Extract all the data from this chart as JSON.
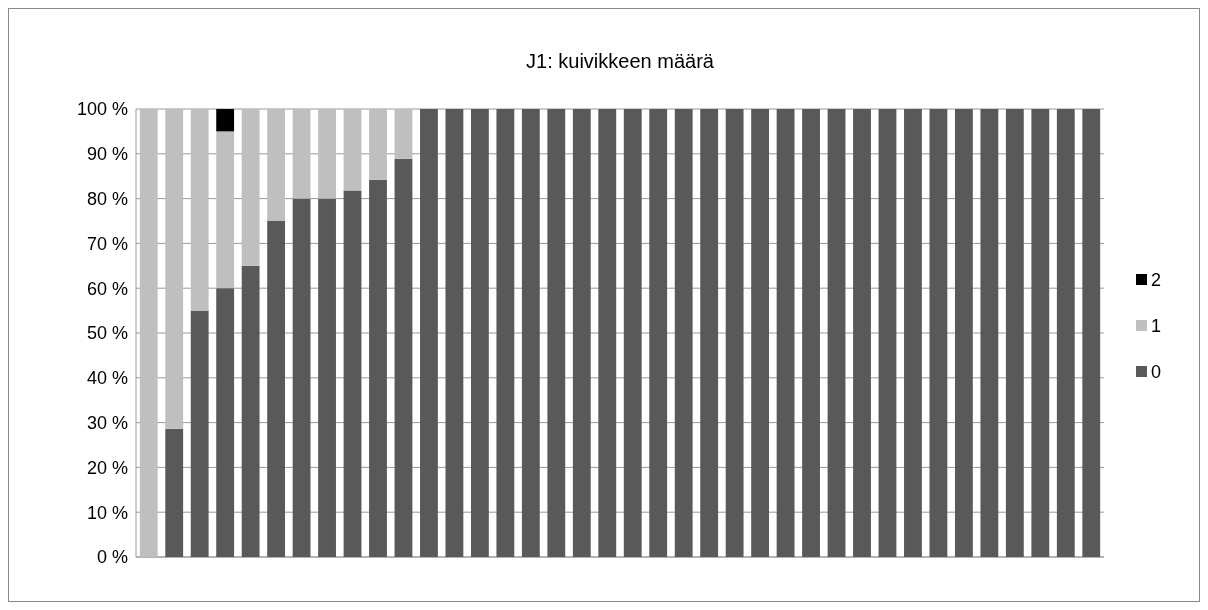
{
  "chart_data": {
    "type": "bar",
    "title": "J1: kuivikkeen määrä",
    "stacked": true,
    "categories": [
      null,
      null,
      null,
      null,
      null,
      null,
      null,
      null,
      null,
      null,
      null,
      null,
      null,
      null,
      null,
      null,
      null,
      null,
      null,
      null,
      null,
      null,
      null,
      null,
      null,
      null,
      null,
      null,
      null,
      null,
      null,
      null,
      null,
      null,
      null,
      null,
      null,
      null
    ],
    "series": [
      {
        "name": "0",
        "color": "#595959",
        "values": [
          0,
          28.6,
          55,
          60,
          65,
          75,
          80,
          80,
          81.8,
          84.2,
          88.9,
          100,
          100,
          100,
          100,
          100,
          100,
          100,
          100,
          100,
          100,
          100,
          100,
          100,
          100,
          100,
          100,
          100,
          100,
          100,
          100,
          100,
          100,
          100,
          100,
          100,
          100,
          100
        ]
      },
      {
        "name": "1",
        "color": "#bfbfbf",
        "values": [
          100,
          71.4,
          45,
          35,
          35,
          25,
          20,
          20,
          18.2,
          15.8,
          11.1,
          0,
          0,
          0,
          0,
          0,
          0,
          0,
          0,
          0,
          0,
          0,
          0,
          0,
          0,
          0,
          0,
          0,
          0,
          0,
          0,
          0,
          0,
          0,
          0,
          0,
          0,
          0
        ]
      },
      {
        "name": "2",
        "color": "#000000",
        "values": [
          0,
          0,
          0,
          5,
          0,
          0,
          0,
          0,
          0,
          0,
          0,
          0,
          0,
          0,
          0,
          0,
          0,
          0,
          0,
          0,
          0,
          0,
          0,
          0,
          0,
          0,
          0,
          0,
          0,
          0,
          0,
          0,
          0,
          0,
          0,
          0,
          0,
          0
        ]
      }
    ],
    "ylim": [
      0,
      100
    ],
    "yticks": [
      {
        "value": 0,
        "label": "0 %"
      },
      {
        "value": 10,
        "label": "10 %"
      },
      {
        "value": 20,
        "label": "20 %"
      },
      {
        "value": 30,
        "label": "30 %"
      },
      {
        "value": 40,
        "label": "40 %"
      },
      {
        "value": 50,
        "label": "50 %"
      },
      {
        "value": 60,
        "label": "60 %"
      },
      {
        "value": 70,
        "label": "70 %"
      },
      {
        "value": 80,
        "label": "80 %"
      },
      {
        "value": 90,
        "label": "90 %"
      },
      {
        "value": 100,
        "label": "100 %"
      }
    ],
    "grid": "y",
    "legend": "right"
  }
}
